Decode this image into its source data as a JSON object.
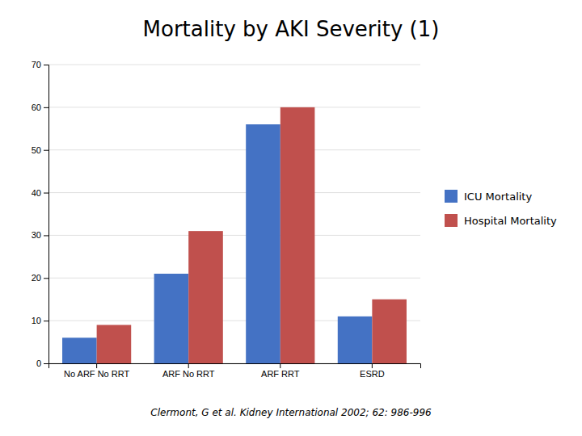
{
  "chart_data": {
    "type": "bar",
    "title": "Mortality by AKI Severity (1)",
    "categories": [
      "No ARF No RRT",
      "ARF No RRT",
      "ARF RRT",
      "ESRD"
    ],
    "series": [
      {
        "name": "ICU Mortality",
        "color": "#4472C4",
        "values": [
          6,
          21,
          56,
          11
        ]
      },
      {
        "name": "Hospital Mortality",
        "color": "#C0504D",
        "values": [
          9,
          31,
          60,
          15
        ]
      }
    ],
    "ylim": [
      0,
      70
    ],
    "yticks": [
      0,
      10,
      20,
      30,
      40,
      50,
      60,
      70
    ],
    "grid": true,
    "legend": "right",
    "annotations": [
      "Clermont, G et al. Kidney International 2002; 62: 986-996"
    ]
  }
}
